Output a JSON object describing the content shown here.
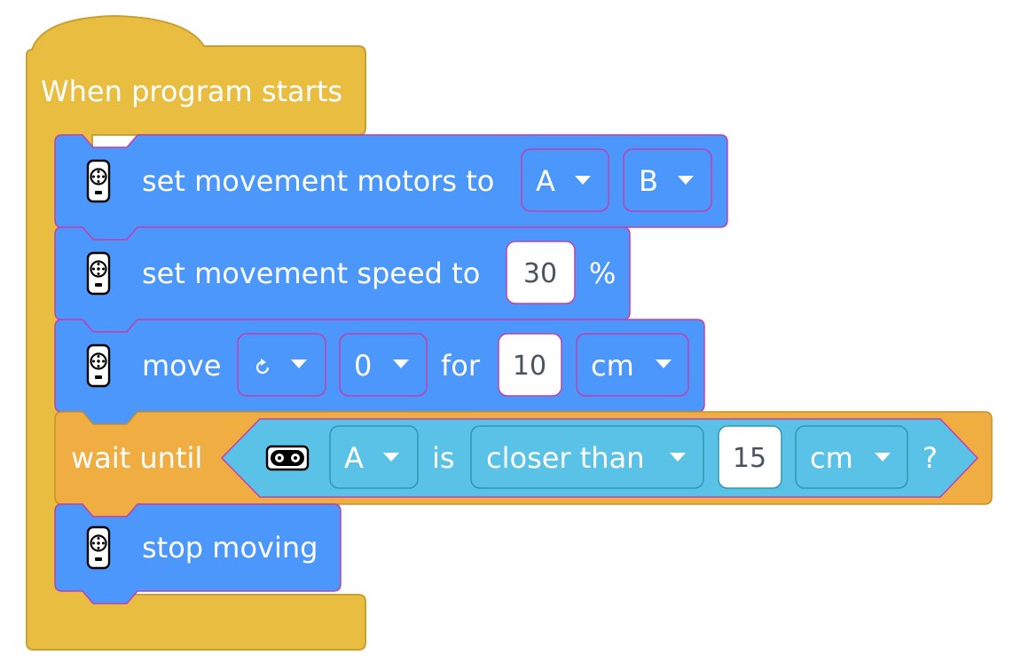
{
  "colors": {
    "hat_block": "#e8bd40",
    "hat_border": "#c9a031",
    "motion_block": "#4c97fb",
    "motion_border": "#c040b0",
    "control_block": "#f0ad41",
    "control_border": "#c4922c",
    "sensor_block": "#5bc2e7",
    "sensor_border": "#2f97b4",
    "text": "#ffffff",
    "value_text": "#4a5361"
  },
  "hat": {
    "label": "When program starts"
  },
  "blocks": {
    "set_motors": {
      "icon": "motor-pair-icon",
      "label": "set movement motors to",
      "port1": "A",
      "port2": "B"
    },
    "set_speed": {
      "icon": "motor-pair-icon",
      "label": "set movement speed to",
      "value": "30",
      "unit": "%"
    },
    "move": {
      "icon": "motor-pair-icon",
      "label": "move",
      "direction_icon": "rotate-arrow-icon",
      "steer": "0",
      "for_label": "for",
      "amount": "10",
      "unit": "cm"
    },
    "wait_until": {
      "label": "wait until",
      "sensor_icon": "distance-sensor-icon",
      "port": "A",
      "is_label": "is",
      "comparison": "closer than",
      "value": "15",
      "unit": "cm",
      "question": "?"
    },
    "stop": {
      "icon": "motor-pair-icon",
      "label": "stop moving"
    }
  }
}
